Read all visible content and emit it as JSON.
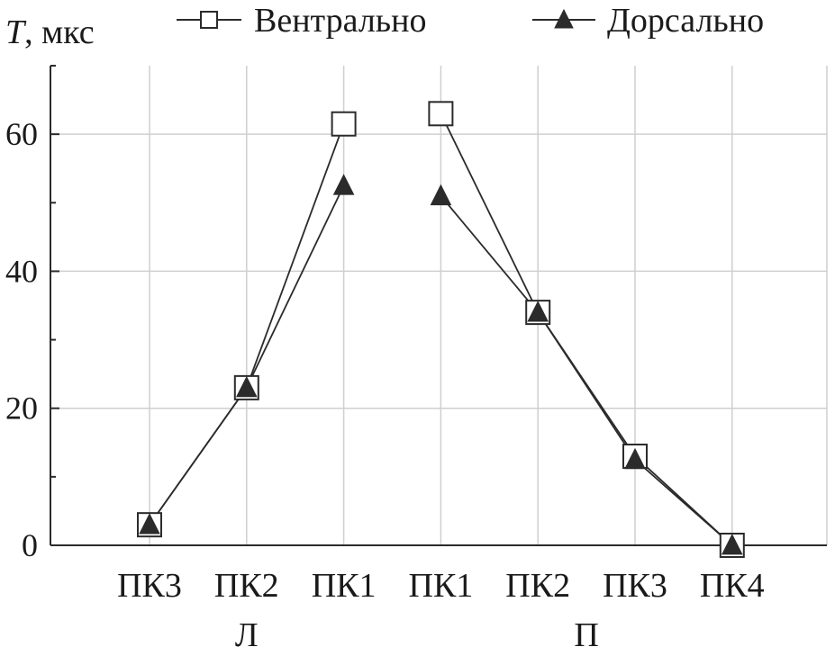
{
  "chart_data": {
    "type": "line",
    "ylabel_var": "T",
    "ylabel_unit": ", мкс",
    "ylim": [
      0,
      70
    ],
    "yticks": [
      0,
      20,
      40,
      60
    ],
    "grid": true,
    "legend": "top",
    "categories": [
      "ПК3",
      "ПК2",
      "ПК1",
      "ПК1",
      "ПК2",
      "ПК3",
      "ПК4"
    ],
    "groups": [
      {
        "label": "Л",
        "center_index": 1
      },
      {
        "label": "П",
        "center_index": 4.5
      }
    ],
    "series": [
      {
        "name": "Вентрально",
        "marker": "open-square",
        "values": [
          3,
          23,
          61.5,
          63,
          34,
          13,
          0
        ]
      },
      {
        "name": "Дорсально",
        "marker": "filled-triangle",
        "values": [
          3,
          23,
          52.5,
          51,
          34,
          12.5,
          0
        ]
      }
    ],
    "segments": [
      [
        0,
        2
      ],
      [
        3,
        6
      ]
    ],
    "colors": {
      "line": "#2b2b2b",
      "grid": "#cfcfcf",
      "axis": "#2b2b2b"
    }
  }
}
